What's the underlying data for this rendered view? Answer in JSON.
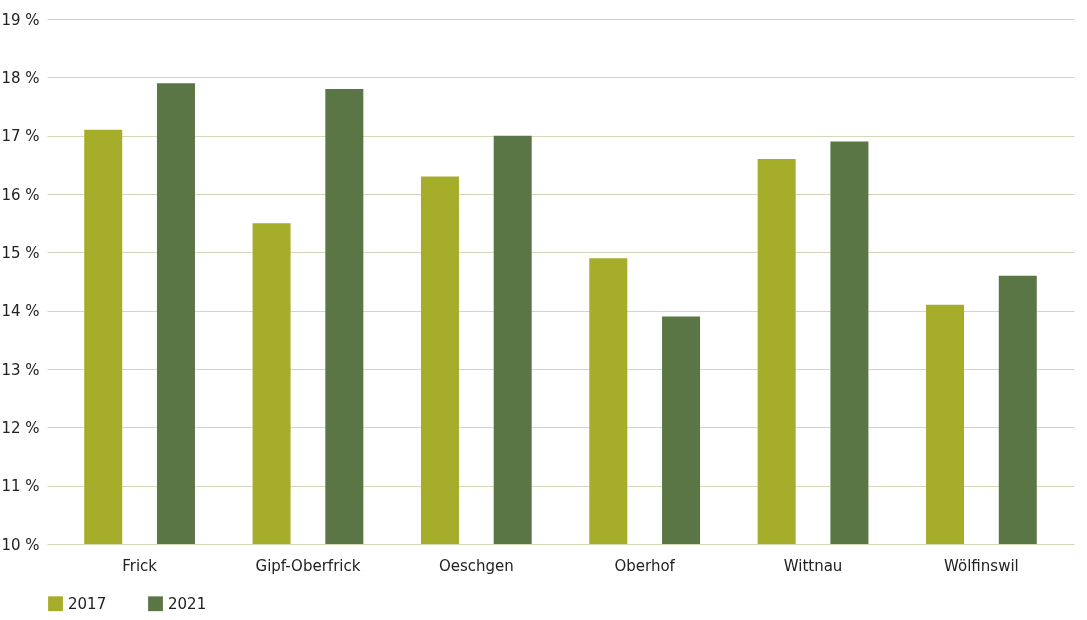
{
  "chart_data": {
    "type": "bar",
    "categories": [
      "Frick",
      "Gipf-Oberfrick",
      "Oeschgen",
      "Oberhof",
      "Wittnau",
      "Wölfinswil"
    ],
    "series": [
      {
        "name": "2017",
        "color": "#a5ad2a",
        "values": [
          17.1,
          15.5,
          16.3,
          14.9,
          16.6,
          14.1
        ]
      },
      {
        "name": "2021",
        "color": "#5a7645",
        "values": [
          17.9,
          17.8,
          17.0,
          13.9,
          16.9,
          14.6
        ]
      }
    ],
    "ylim": [
      10,
      19
    ],
    "yticks": [
      {
        "value": 10,
        "label": "10 %"
      },
      {
        "value": 11,
        "label": "11 %"
      },
      {
        "value": 12,
        "label": "12 %"
      },
      {
        "value": 13,
        "label": "13 %"
      },
      {
        "value": 14,
        "label": "14 %"
      },
      {
        "value": 15,
        "label": "15 %"
      },
      {
        "value": 16,
        "label": "16 %"
      },
      {
        "value": 17,
        "label": "17 %"
      },
      {
        "value": 18,
        "label": "18 %"
      },
      {
        "value": 19,
        "label": "19 %"
      }
    ],
    "grid": "y",
    "legend": "bottom left"
  }
}
